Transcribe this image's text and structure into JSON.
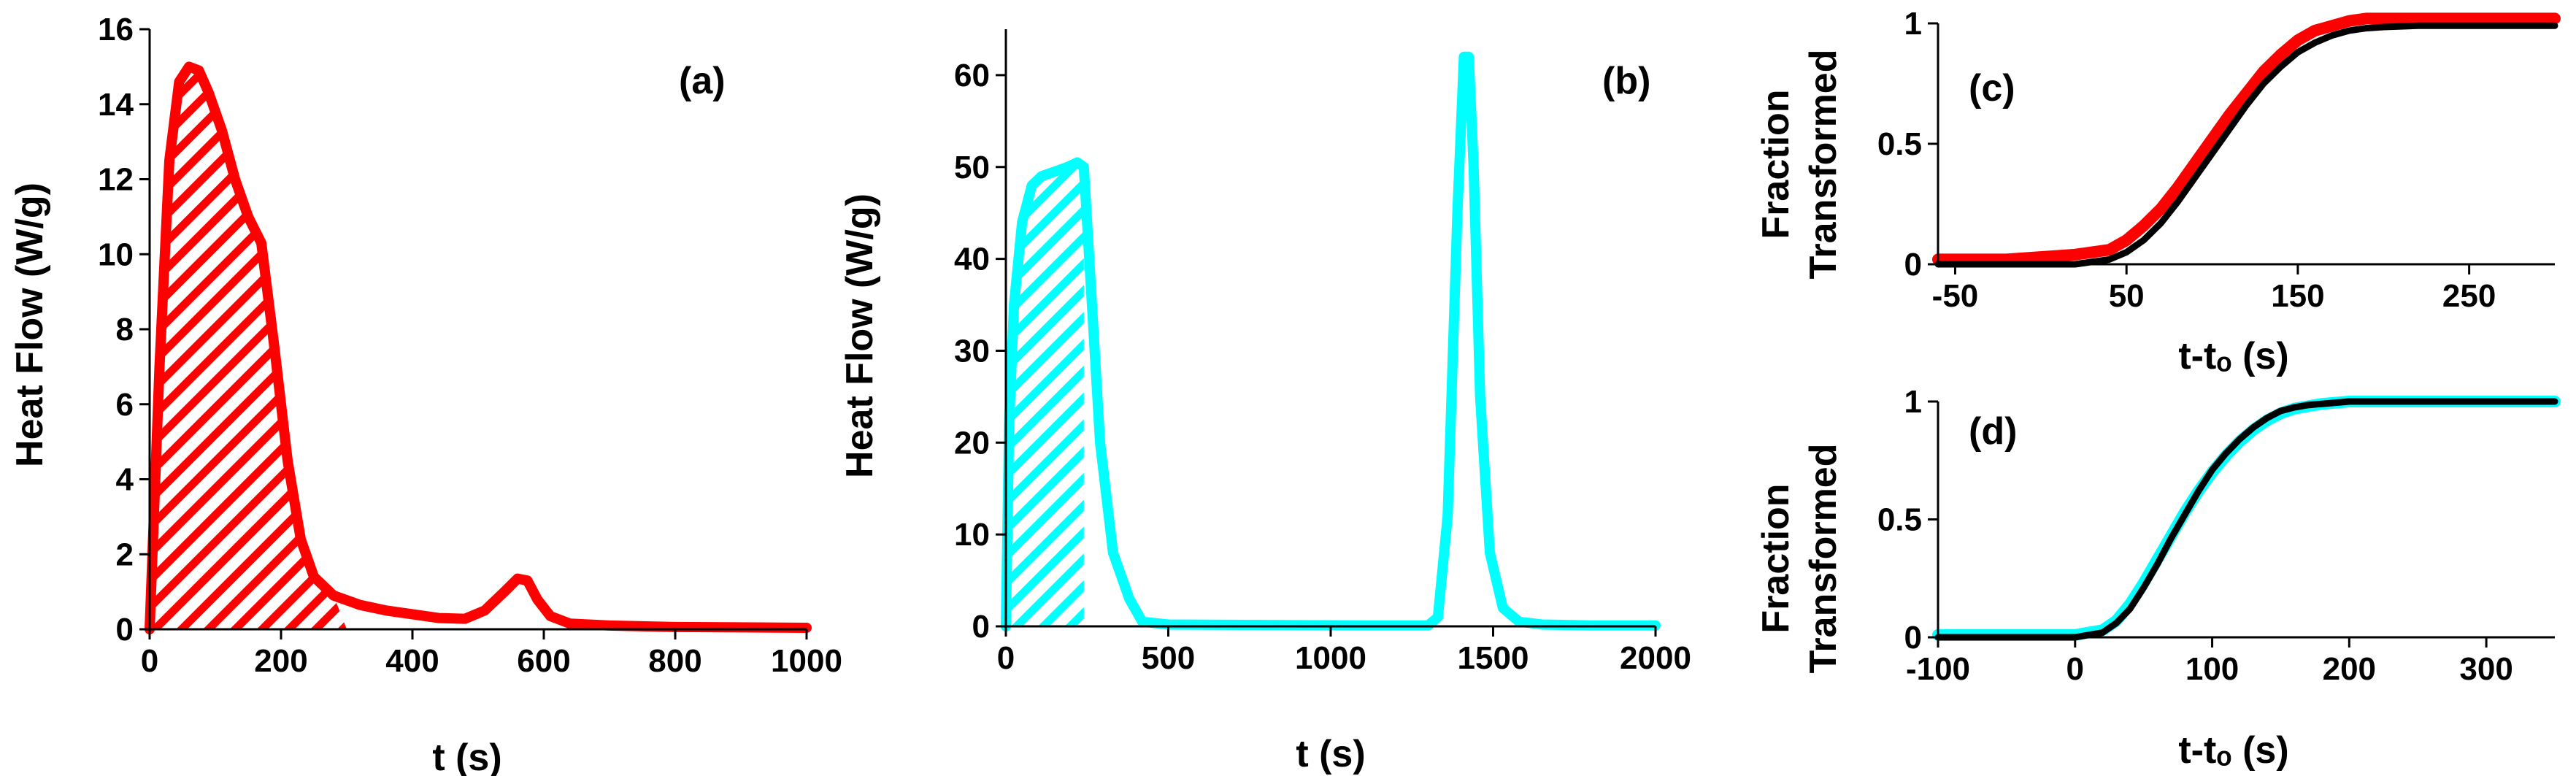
{
  "chart_data": [
    {
      "panel": "a",
      "type": "line",
      "panel_label": "(a)",
      "xlabel": "t (s)",
      "ylabel": "Heat  Flow (W/g)",
      "xlim": [
        0,
        1000
      ],
      "ylim": [
        0,
        16
      ],
      "xticks": [
        0,
        200,
        400,
        600,
        800,
        1000
      ],
      "yticks": [
        0,
        2,
        4,
        6,
        8,
        10,
        12,
        14,
        16
      ],
      "grid": false,
      "hatched_region": [
        0,
        300
      ],
      "color": "#ff0000",
      "series": [
        {
          "x": [
            0,
            15,
            30,
            45,
            60,
            75,
            90,
            110,
            130,
            150,
            170,
            190,
            210,
            230,
            250,
            280,
            320,
            360,
            400,
            440,
            480,
            510,
            540,
            560,
            575,
            590,
            610,
            640,
            700,
            800,
            900,
            1000
          ],
          "y": [
            0,
            7,
            12.5,
            14.6,
            15.0,
            14.9,
            14.3,
            13.3,
            12.0,
            11.0,
            10.3,
            7.5,
            4.5,
            2.4,
            1.4,
            0.9,
            0.65,
            0.5,
            0.4,
            0.3,
            0.28,
            0.5,
            1.0,
            1.35,
            1.3,
            0.8,
            0.35,
            0.15,
            0.1,
            0.06,
            0.05,
            0.04
          ]
        }
      ]
    },
    {
      "panel": "b",
      "type": "line",
      "panel_label": "(b)",
      "xlabel": "t (s)",
      "ylabel": "Heat  Flow (W/g)",
      "xlim": [
        0,
        2000
      ],
      "ylim": [
        0,
        65
      ],
      "xticks": [
        0,
        500,
        1000,
        1500,
        2000
      ],
      "yticks": [
        0,
        10,
        20,
        30,
        40,
        50,
        60
      ],
      "grid": false,
      "hatched_region": [
        0,
        240
      ],
      "color": "#00ffff",
      "series": [
        {
          "x": [
            0,
            10,
            25,
            50,
            80,
            110,
            150,
            190,
            220,
            240,
            260,
            290,
            330,
            380,
            420,
            500,
            800,
            1100,
            1300,
            1330,
            1360,
            1390,
            1410,
            1425,
            1440,
            1460,
            1490,
            1530,
            1580,
            1650,
            1800,
            2000
          ],
          "y": [
            0,
            22,
            35,
            44,
            48,
            49,
            49.5,
            50,
            50.5,
            50,
            38,
            20,
            8,
            3,
            0.5,
            0.2,
            0.15,
            0.1,
            0.1,
            1,
            12,
            45,
            62,
            62,
            50,
            25,
            8,
            2,
            0.5,
            0.2,
            0.1,
            0.1
          ]
        }
      ]
    },
    {
      "panel": "c",
      "type": "line",
      "panel_label": "(c)",
      "xlabel": "t-tₒ (s)",
      "ylabel": "Fraction Transformed",
      "xlim": [
        -60,
        300
      ],
      "ylim": [
        0,
        1
      ],
      "xticks": [
        -50,
        50,
        150,
        250
      ],
      "yticks": [
        0,
        0.5,
        1
      ],
      "grid": false,
      "series": [
        {
          "color": "#ff0000",
          "x": [
            -60,
            -40,
            -20,
            0,
            20,
            40,
            50,
            60,
            70,
            80,
            90,
            100,
            110,
            120,
            130,
            140,
            150,
            160,
            170,
            180,
            190,
            200,
            220,
            240,
            260,
            280,
            300
          ],
          "y": [
            0.02,
            0.02,
            0.02,
            0.03,
            0.04,
            0.06,
            0.1,
            0.16,
            0.23,
            0.32,
            0.42,
            0.52,
            0.62,
            0.71,
            0.8,
            0.87,
            0.93,
            0.97,
            0.99,
            1.01,
            1.02,
            1.02,
            1.02,
            1.02,
            1.02,
            1.02,
            1.02
          ]
        },
        {
          "color": "#000000",
          "x": [
            -60,
            -40,
            -20,
            0,
            20,
            40,
            50,
            60,
            70,
            80,
            90,
            100,
            110,
            120,
            130,
            140,
            150,
            160,
            170,
            180,
            190,
            200,
            220,
            240,
            260,
            280,
            300
          ],
          "y": [
            0,
            0,
            0,
            0,
            0.0,
            0.02,
            0.05,
            0.1,
            0.17,
            0.26,
            0.36,
            0.46,
            0.56,
            0.66,
            0.75,
            0.82,
            0.88,
            0.92,
            0.95,
            0.97,
            0.98,
            0.985,
            0.99,
            0.99,
            0.99,
            0.99,
            0.99
          ]
        }
      ]
    },
    {
      "panel": "d",
      "type": "line",
      "panel_label": "(d)",
      "xlabel": "t-tₒ (s)",
      "ylabel": "Fraction Transformed",
      "xlim": [
        -100,
        350
      ],
      "ylim": [
        0,
        1
      ],
      "xticks": [
        -100,
        0,
        100,
        200,
        300
      ],
      "yticks": [
        0,
        0.5,
        1
      ],
      "grid": false,
      "series": [
        {
          "color": "#00ffff",
          "x": [
            -100,
            -60,
            -20,
            0,
            20,
            30,
            40,
            50,
            60,
            70,
            80,
            90,
            100,
            110,
            120,
            130,
            140,
            150,
            160,
            170,
            180,
            200,
            230,
            260,
            300,
            350
          ],
          "y": [
            0.01,
            0.01,
            0.01,
            0.01,
            0.03,
            0.07,
            0.14,
            0.23,
            0.33,
            0.43,
            0.53,
            0.62,
            0.7,
            0.77,
            0.83,
            0.88,
            0.92,
            0.95,
            0.97,
            0.98,
            0.99,
            1.0,
            1.0,
            1.0,
            1.0,
            1.0
          ]
        },
        {
          "color": "#000000",
          "x": [
            -100,
            -60,
            -20,
            0,
            20,
            30,
            40,
            50,
            60,
            70,
            80,
            90,
            100,
            110,
            120,
            130,
            140,
            150,
            160,
            170,
            180,
            200,
            230,
            260,
            300,
            350
          ],
          "y": [
            0,
            0,
            0,
            0,
            0.02,
            0.06,
            0.12,
            0.21,
            0.31,
            0.42,
            0.52,
            0.62,
            0.71,
            0.78,
            0.84,
            0.89,
            0.93,
            0.96,
            0.975,
            0.985,
            0.99,
            1.0,
            1.0,
            1.0,
            1.0,
            1.0
          ]
        }
      ]
    }
  ]
}
